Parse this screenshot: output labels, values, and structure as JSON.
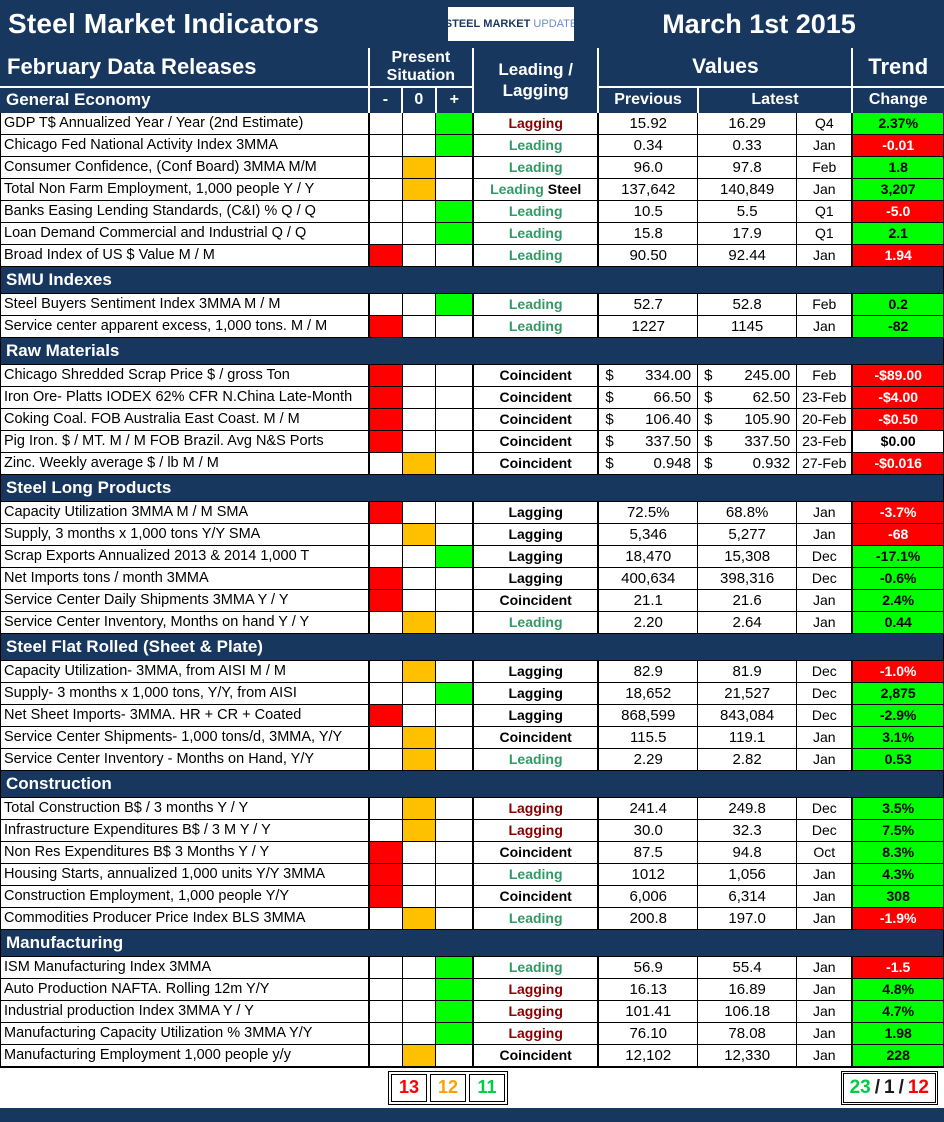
{
  "header": {
    "title": "Steel Market Indicators",
    "date": "March 1st 2015",
    "logo": {
      "steel": "STEEL",
      "market": "MARKET",
      "update": "UPDATE"
    }
  },
  "thead": {
    "releases": "February Data Releases",
    "present_situation_line1": "Present",
    "present_situation_line2": "Situation",
    "minus": "-",
    "zero": "0",
    "plus": "+",
    "leading_line1": "Leading /",
    "leading_line2": "Lagging",
    "values": "Values",
    "previous": "Previous",
    "latest": "Latest",
    "trend": "Trend",
    "change": "Change"
  },
  "colors": {
    "navy": "#17375E",
    "green_cell": "#00FF00",
    "amber_cell": "#FFC000",
    "red_cell": "#FF0000",
    "leading_text": "#339966",
    "lagging_text": "#8B0000"
  },
  "sections": [
    {
      "name": "General Economy",
      "rows": [
        {
          "label": "GDP T$ Annualized Year / Year (2nd Estimate)",
          "situation": "plus",
          "signal": "Lagging",
          "signal_style": "maroon",
          "previous": "15.92",
          "latest": "16.29",
          "period": "Q4",
          "change": "2.37%",
          "change_style": "green"
        },
        {
          "label": "Chicago Fed National Activity Index 3MMA",
          "situation": "plus",
          "signal": "Leading",
          "signal_style": "green",
          "previous": "0.34",
          "latest": "0.33",
          "period": "Jan",
          "change": "-0.01",
          "change_style": "red"
        },
        {
          "label": "Consumer Confidence, (Conf Board) 3MMA M/M",
          "situation": "zero",
          "signal": "Leading",
          "signal_style": "green",
          "previous": "96.0",
          "latest": "97.8",
          "period": "Feb",
          "change": "1.8",
          "change_style": "green"
        },
        {
          "label": "Total Non Farm Employment, 1,000 people Y / Y",
          "situation": "zero",
          "signal": "Leading",
          "signal_style": "green",
          "signal_suffix": "Steel",
          "previous": "137,642",
          "latest": "140,849",
          "period": "Jan",
          "change": "3,207",
          "change_style": "green"
        },
        {
          "label": "Banks Easing Lending Standards, (C&I) % Q / Q",
          "situation": "plus",
          "signal": "Leading",
          "signal_style": "green",
          "previous": "10.5",
          "latest": "5.5",
          "period": "Q1",
          "change": "-5.0",
          "change_style": "red"
        },
        {
          "label": "Loan Demand Commercial and Industrial Q / Q",
          "situation": "plus",
          "signal": "Leading",
          "signal_style": "green",
          "previous": "15.8",
          "latest": "17.9",
          "period": "Q1",
          "change": "2.1",
          "change_style": "green"
        },
        {
          "label": "Broad Index of US $ Value M / M",
          "situation": "minus",
          "signal": "Leading",
          "signal_style": "green",
          "previous": "90.50",
          "latest": "92.44",
          "period": "Jan",
          "change": "1.94",
          "change_style": "red"
        }
      ]
    },
    {
      "name": "SMU Indexes",
      "rows": [
        {
          "label": "Steel Buyers Sentiment Index 3MMA M / M",
          "situation": "plus",
          "signal": "Leading",
          "signal_style": "green",
          "previous": "52.7",
          "latest": "52.8",
          "period": "Feb",
          "change": "0.2",
          "change_style": "green"
        },
        {
          "label": "Service center apparent excess, 1,000 tons. M / M",
          "situation": "minus",
          "signal": "Leading",
          "signal_style": "green",
          "previous": "1227",
          "latest": "1145",
          "period": "Jan",
          "change": "-82",
          "change_style": "green"
        }
      ]
    },
    {
      "name": "Raw Materials",
      "rows": [
        {
          "label": "Chicago Shredded Scrap Price $ / gross Ton",
          "situation": "minus",
          "signal": "Coincident",
          "signal_style": "black",
          "currency": "$",
          "previous": "334.00",
          "latest": "245.00",
          "period": "Feb",
          "change": "-$89.00",
          "change_style": "red"
        },
        {
          "label": "Iron Ore- Platts IODEX 62% CFR N.China Late-Month",
          "situation": "minus",
          "signal": "Coincident",
          "signal_style": "black",
          "currency": "$",
          "previous": "66.50",
          "latest": "62.50",
          "period": "23-Feb",
          "change": "-$4.00",
          "change_style": "red"
        },
        {
          "label": "Coking Coal. FOB Australia East Coast. M / M",
          "situation": "minus",
          "signal": "Coincident",
          "signal_style": "black",
          "currency": "$",
          "previous": "106.40",
          "latest": "105.90",
          "period": "20-Feb",
          "change": "-$0.50",
          "change_style": "red"
        },
        {
          "label": "Pig Iron. $ / MT. M / M FOB Brazil. Avg N&S Ports",
          "situation": "minus",
          "signal": "Coincident",
          "signal_style": "black",
          "currency": "$",
          "previous": "337.50",
          "latest": "337.50",
          "period": "23-Feb",
          "change": "$0.00",
          "change_style": "white"
        },
        {
          "label": "Zinc. Weekly average $ / lb M / M",
          "situation": "zero",
          "signal": "Coincident",
          "signal_style": "black",
          "currency": "$",
          "previous": "0.948",
          "latest": "0.932",
          "period": "27-Feb",
          "change": "-$0.016",
          "change_style": "red"
        }
      ]
    },
    {
      "name": "Steel Long Products",
      "rows": [
        {
          "label": "Capacity Utilization 3MMA  M / M SMA",
          "situation": "minus",
          "signal": "Lagging",
          "signal_style": "black",
          "previous": "72.5%",
          "latest": "68.8%",
          "period": "Jan",
          "change": "-3.7%",
          "change_style": "red"
        },
        {
          "label": "Supply, 3 months x 1,000 tons Y/Y SMA",
          "situation": "zero",
          "signal": "Lagging",
          "signal_style": "black",
          "previous": "5,346",
          "latest": "5,277",
          "period": "Jan",
          "change": "-68",
          "change_style": "red"
        },
        {
          "label": "Scrap Exports Annualized 2013 & 2014 1,000 T",
          "situation": "plus",
          "signal": "Lagging",
          "signal_style": "black",
          "previous": "18,470",
          "latest": "15,308",
          "period": "Dec",
          "change": "-17.1%",
          "change_style": "green"
        },
        {
          "label": "Net Imports tons / month 3MMA",
          "situation": "minus",
          "signal": "Lagging",
          "signal_style": "black",
          "previous": "400,634",
          "latest": "398,316",
          "period": "Dec",
          "change": "-0.6%",
          "change_style": "green"
        },
        {
          "label": "Service Center Daily Shipments 3MMA Y / Y",
          "situation": "minus",
          "signal": "Coincident",
          "signal_style": "black",
          "previous": "21.1",
          "latest": "21.6",
          "period": "Jan",
          "change": "2.4%",
          "change_style": "green"
        },
        {
          "label": "Service Center Inventory, Months on hand Y / Y",
          "situation": "zero",
          "signal": "Leading",
          "signal_style": "green",
          "previous": "2.20",
          "latest": "2.64",
          "period": "Jan",
          "change": "0.44",
          "change_style": "green"
        }
      ]
    },
    {
      "name": "Steel Flat Rolled (Sheet & Plate)",
      "rows": [
        {
          "label": "Capacity Utilization- 3MMA, from AISI M / M",
          "situation": "zero",
          "signal": "Lagging",
          "signal_style": "black",
          "previous": "82.9",
          "latest": "81.9",
          "period": "Dec",
          "change": "-1.0%",
          "change_style": "red"
        },
        {
          "label": "Supply- 3 months x 1,000 tons, Y/Y, from AISI",
          "situation": "plus",
          "signal": "Lagging",
          "signal_style": "black",
          "previous": "18,652",
          "latest": "21,527",
          "period": "Dec",
          "change": "2,875",
          "change_style": "green"
        },
        {
          "label": "Net Sheet Imports- 3MMA. HR + CR + Coated",
          "situation": "minus",
          "signal": "Lagging",
          "signal_style": "black",
          "previous": "868,599",
          "latest": "843,084",
          "period": "Dec",
          "change": "-2.9%",
          "change_style": "green"
        },
        {
          "label": "Service Center Shipments- 1,000 tons/d, 3MMA, Y/Y",
          "situation": "zero",
          "signal": "Coincident",
          "signal_style": "black",
          "previous": "115.5",
          "latest": "119.1",
          "period": "Jan",
          "change": "3.1%",
          "change_style": "green"
        },
        {
          "label": "Service Center Inventory - Months on Hand, Y/Y",
          "situation": "zero",
          "signal": "Leading",
          "signal_style": "green",
          "previous": "2.29",
          "latest": "2.82",
          "period": "Jan",
          "change": "0.53",
          "change_style": "green"
        }
      ]
    },
    {
      "name": "Construction",
      "rows": [
        {
          "label": "Total Construction B$ /  3 months Y / Y",
          "situation": "zero",
          "signal": "Lagging",
          "signal_style": "maroon",
          "previous": "241.4",
          "latest": "249.8",
          "period": "Dec",
          "change": "3.5%",
          "change_style": "green"
        },
        {
          "label": "Infrastructure Expenditures B$ / 3 M    Y / Y",
          "situation": "zero",
          "signal": "Lagging",
          "signal_style": "maroon",
          "previous": "30.0",
          "latest": "32.3",
          "period": "Dec",
          "change": "7.5%",
          "change_style": "green"
        },
        {
          "label": "Non Res Expenditures B$  3 Months   Y / Y",
          "situation": "minus",
          "signal": "Coincident",
          "signal_style": "black",
          "previous": "87.5",
          "latest": "94.8",
          "period": "Oct",
          "change": "8.3%",
          "change_style": "green"
        },
        {
          "label": "Housing Starts, annualized 1,000 units Y/Y 3MMA",
          "situation": "minus",
          "signal": "Leading",
          "signal_style": "green",
          "previous": "1012",
          "latest": "1,056",
          "period": "Jan",
          "change": "4.3%",
          "change_style": "green"
        },
        {
          "label": "Construction Employment, 1,000 people Y/Y",
          "situation": "minus",
          "signal": "Coincident",
          "signal_style": "black",
          "previous": "6,006",
          "latest": "6,314",
          "period": "Jan",
          "change": "308",
          "change_style": "green"
        },
        {
          "label": "Commodities Producer Price Index BLS 3MMA",
          "situation": "zero",
          "signal": "Leading",
          "signal_style": "green",
          "previous": "200.8",
          "latest": "197.0",
          "period": "Jan",
          "change": "-1.9%",
          "change_style": "red"
        }
      ]
    },
    {
      "name": "Manufacturing",
      "rows": [
        {
          "label": "ISM Manufacturing Index 3MMA",
          "situation": "plus",
          "signal": "Leading",
          "signal_style": "green",
          "previous": "56.9",
          "latest": "55.4",
          "period": "Jan",
          "change": "-1.5",
          "change_style": "red"
        },
        {
          "label": "Auto Production NAFTA. Rolling 12m Y/Y",
          "situation": "plus",
          "signal": "Lagging",
          "signal_style": "maroon",
          "previous": "16.13",
          "latest": "16.89",
          "period": "Jan",
          "change": "4.8%",
          "change_style": "green"
        },
        {
          "label": "Industrial production Index 3MMA Y / Y",
          "situation": "plus",
          "signal": "Lagging",
          "signal_style": "maroon",
          "previous": "101.41",
          "latest": "106.18",
          "period": "Jan",
          "change": "4.7%",
          "change_style": "green"
        },
        {
          "label": "Manufacturing Capacity Utilization % 3MMA Y/Y",
          "situation": "plus",
          "signal": "Lagging",
          "signal_style": "maroon",
          "previous": "76.10",
          "latest": "78.08",
          "period": "Jan",
          "change": "1.98",
          "change_style": "green"
        },
        {
          "label": "Manufacturing Employment 1,000 people y/y",
          "situation": "zero",
          "signal": "Coincident",
          "signal_style": "black",
          "previous": "12,102",
          "latest": "12,330",
          "period": "Jan",
          "change": "228",
          "change_style": "green"
        }
      ]
    }
  ],
  "footer": {
    "left_counts": [
      {
        "value": "13",
        "color": "red"
      },
      {
        "value": "12",
        "color": "orange"
      },
      {
        "value": "11",
        "color": "green"
      }
    ],
    "right_summary": [
      {
        "value": "23",
        "color": "green"
      },
      {
        "value": "/",
        "color": "black"
      },
      {
        "value": "1",
        "color": "black"
      },
      {
        "value": "/",
        "color": "black"
      },
      {
        "value": "12",
        "color": "red"
      }
    ]
  }
}
